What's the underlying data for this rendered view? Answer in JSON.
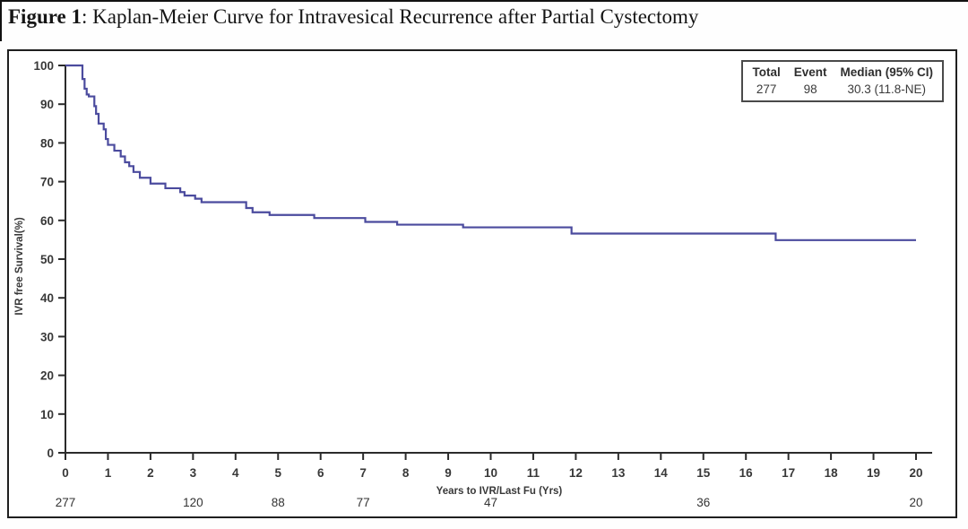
{
  "page": {
    "title_prefix": "Figure 1",
    "title_rest": ": Kaplan-Meier Curve for Intravesical Recurrence after Partial Cystectomy"
  },
  "legend": {
    "headers": [
      "Total",
      "Event",
      "Median (95% CI)"
    ],
    "values": [
      "277",
      "98",
      "30.3 (11.8-NE)"
    ]
  },
  "chart_data": {
    "type": "line",
    "subtype": "kaplan-meier-step-curve",
    "title": "Kaplan-Meier Curve for Intravesical Recurrence after Partial Cystectomy",
    "xlabel": "Years to IVR/Last Fu (Yrs)",
    "ylabel": "IVR free Survival(%)",
    "xlim": [
      0,
      20
    ],
    "ylim": [
      0,
      100
    ],
    "x_ticks": [
      0,
      1,
      2,
      3,
      4,
      5,
      6,
      7,
      8,
      9,
      10,
      11,
      12,
      13,
      14,
      15,
      16,
      17,
      18,
      19,
      20
    ],
    "y_ticks": [
      0,
      10,
      20,
      30,
      40,
      50,
      60,
      70,
      80,
      90,
      100
    ],
    "grid": false,
    "legend_position": "top-right",
    "line_color": "#4b4b9e",
    "axis_color": "#2b2b2b",
    "tick_label_color": "#383838",
    "series": [
      {
        "name": "IVR free survival (%)",
        "points": [
          [
            0,
            100
          ],
          [
            0.4,
            96.5
          ],
          [
            0.45,
            94.0
          ],
          [
            0.5,
            92.5
          ],
          [
            0.55,
            92.0
          ],
          [
            0.68,
            89.5
          ],
          [
            0.72,
            87.5
          ],
          [
            0.78,
            85.0
          ],
          [
            0.9,
            83.5
          ],
          [
            0.95,
            81.0
          ],
          [
            1.0,
            79.5
          ],
          [
            1.15,
            78.0
          ],
          [
            1.3,
            76.5
          ],
          [
            1.4,
            75.0
          ],
          [
            1.5,
            74.0
          ],
          [
            1.6,
            72.5
          ],
          [
            1.75,
            71.0
          ],
          [
            2.0,
            69.5
          ],
          [
            2.35,
            68.3
          ],
          [
            2.7,
            67.3
          ],
          [
            2.8,
            66.4
          ],
          [
            3.05,
            65.6
          ],
          [
            3.2,
            64.7
          ],
          [
            4.25,
            63.2
          ],
          [
            4.4,
            62.1
          ],
          [
            4.8,
            61.4
          ],
          [
            5.85,
            60.6
          ],
          [
            7.05,
            59.6
          ],
          [
            7.8,
            58.9
          ],
          [
            9.35,
            58.2
          ],
          [
            11.9,
            56.6
          ],
          [
            16.7,
            54.9
          ]
        ]
      }
    ],
    "at_risk": {
      "times": [
        0,
        3,
        5,
        7,
        10,
        15,
        20
      ],
      "counts": [
        "277",
        "120",
        "88",
        "77",
        "47",
        "36",
        "20"
      ]
    },
    "summary_table": {
      "total": 277,
      "event": 98,
      "median": "30.3",
      "ci_95": "11.8-NE"
    }
  }
}
